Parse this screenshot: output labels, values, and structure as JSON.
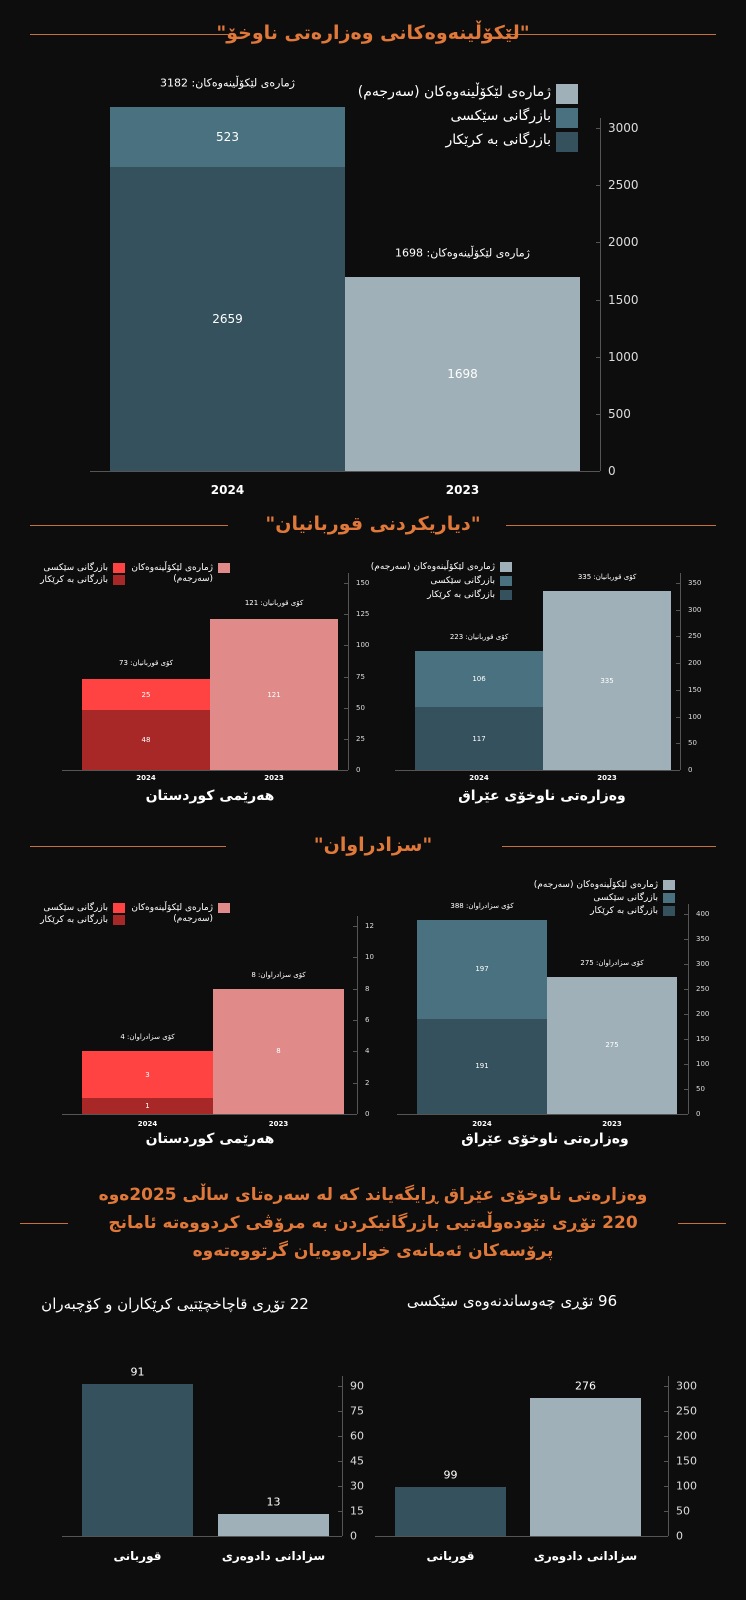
{
  "sections": {
    "investigations_title": "\"لێکۆڵینەوەکانی وەزارەتی ناوخۆ\"",
    "victims_title": "\"دیاریکردنی قوربانیان\"",
    "sentenced_title": "\"سزادراوان\""
  },
  "narrative": [
    "وەزارەتی ناوخۆی عێراق ڕایگەیاند کە لە سەرەتای ساڵی 2025ەوە",
    "220 تۆڕی نێودەوڵەتیی بازرگانیکردن بە مرۆڤی کردووەتە ئامانج",
    "پرۆسەکان ئەمانەی خوارەوەیان گرتووەتەوە"
  ],
  "colors": {
    "accent": "#e0783a",
    "teal_total": "#a0b0b8",
    "teal_sexual": "#4a7180",
    "teal_labor": "#34515d",
    "red_total": "#e08a8a",
    "red_sexual": "#ff4343",
    "red_labor": "#a82828"
  },
  "chart_data": [
    {
      "id": "investigations",
      "type": "bar",
      "stacked": true,
      "title": "",
      "xlabel": "",
      "ylabel": "",
      "ylim": [
        0,
        3000
      ],
      "ticks": [
        0,
        500,
        1000,
        1500,
        2000,
        2500,
        3000
      ],
      "palette": "teal",
      "legend_placement": "top-right",
      "series": {
        "total": "ژمارەی لێکۆڵینەوەکان (سەرجەم)",
        "sexual": "بازرگانی سێکسی",
        "labor": "بازرگانی بە کرێکار"
      },
      "categories": [
        "2024",
        "2023"
      ],
      "bars": [
        {
          "category": "2024",
          "total_label": "ژمارەی لێکۆڵینەوەکان: 3182",
          "segments": [
            {
              "series": "labor",
              "value": 2659
            },
            {
              "series": "sexual",
              "value": 523
            }
          ]
        },
        {
          "category": "2023",
          "total_label": "ژمارەی لێکۆڵینەوەکان: 1698",
          "segments": [
            {
              "series": "total",
              "value": 1698
            }
          ]
        }
      ]
    },
    {
      "id": "krg-victims",
      "type": "bar",
      "stacked": true,
      "title": "هەرێمی کوردستان",
      "ylim": [
        0,
        150
      ],
      "ticks": [
        0,
        25,
        50,
        75,
        100,
        125,
        150
      ],
      "palette": "red",
      "legend_placement": "top-left",
      "series": {
        "total": "ژمارەی لێکۆڵینەوەکان (سەرجەم)",
        "sexual": "بازرگانی سێکسی",
        "labor": "بازرگانی بە کرێکار"
      },
      "categories": [
        "2024",
        "2023"
      ],
      "bars": [
        {
          "category": "2024",
          "total_label": "کۆی قوربانیان: 73",
          "segments": [
            {
              "series": "labor",
              "value": 48
            },
            {
              "series": "sexual",
              "value": 25
            }
          ]
        },
        {
          "category": "2023",
          "total_label": "کۆی قوربانیان: 121",
          "segments": [
            {
              "series": "total",
              "value": 121
            }
          ]
        }
      ]
    },
    {
      "id": "iraq-victims",
      "type": "bar",
      "stacked": true,
      "title": "وەزارەتی ناوخۆی عێراق",
      "ylim": [
        0,
        350
      ],
      "ticks": [
        0,
        50,
        100,
        150,
        200,
        250,
        300,
        350
      ],
      "palette": "teal",
      "legend_placement": "top-left",
      "series": {
        "total": "ژمارەی لێکۆڵینەوەکان (سەرجەم)",
        "sexual": "بازرگانی سێکسی",
        "labor": "بازرگانی بە کرێکار"
      },
      "categories": [
        "2024",
        "2023"
      ],
      "bars": [
        {
          "category": "2024",
          "total_label": "کۆی قوربانیان: 223",
          "segments": [
            {
              "series": "labor",
              "value": 117
            },
            {
              "series": "sexual",
              "value": 106
            }
          ]
        },
        {
          "category": "2023",
          "total_label": "کۆی قوربانیان: 335",
          "segments": [
            {
              "series": "total",
              "value": 335
            }
          ]
        }
      ]
    },
    {
      "id": "krg-sentenced",
      "type": "bar",
      "stacked": true,
      "title": "هەرێمی کوردستان",
      "ylim": [
        0,
        12
      ],
      "ticks": [
        0,
        2,
        4,
        6,
        8,
        10,
        12
      ],
      "palette": "red",
      "legend_placement": "top-left",
      "series": {
        "total": "ژمارەی لێکۆڵینەوەکان (سەرجەم)",
        "sexual": "بازرگانی سێکسی",
        "labor": "بازرگانی بە کرێکار"
      },
      "categories": [
        "2024",
        "2023"
      ],
      "bars": [
        {
          "category": "2024",
          "total_label": "کۆی سزادراوان: 4",
          "segments": [
            {
              "series": "labor",
              "value": 1
            },
            {
              "series": "sexual",
              "value": 3
            }
          ]
        },
        {
          "category": "2023",
          "total_label": "کۆی سزادراوان: 8",
          "segments": [
            {
              "series": "total",
              "value": 8
            }
          ]
        }
      ]
    },
    {
      "id": "iraq-sentenced",
      "type": "bar",
      "stacked": true,
      "title": "وەزارەتی ناوخۆی عێراق",
      "ylim": [
        0,
        400
      ],
      "ticks": [
        0,
        50,
        100,
        150,
        200,
        250,
        300,
        350,
        400
      ],
      "palette": "teal",
      "legend_placement": "top-right",
      "series": {
        "total": "ژمارەی لێکۆڵینەوەکان (سەرجەم)",
        "sexual": "بازرگانی سێکسی",
        "labor": "بازرگانی بە کرێکار"
      },
      "categories": [
        "2024",
        "2023"
      ],
      "bars": [
        {
          "category": "2024",
          "total_label": "کۆی سزادراوان: 388",
          "segments": [
            {
              "series": "labor",
              "value": 191
            },
            {
              "series": "sexual",
              "value": 197
            }
          ]
        },
        {
          "category": "2023",
          "total_label": "کۆی سزادراوان: 275",
          "segments": [
            {
              "series": "total",
              "value": 275
            }
          ]
        }
      ]
    },
    {
      "id": "labor-networks",
      "type": "bar",
      "stacked": false,
      "title": "22 تۆڕی قاچاخچێتیی کرێکاران و کۆچبەران",
      "ylim": [
        0,
        90
      ],
      "ticks": [
        0,
        15,
        30,
        45,
        60,
        75,
        90
      ],
      "palette": "teal",
      "categories": [
        "قوربانی",
        "سزادانی دادوەری"
      ],
      "bars": [
        {
          "category": "قوربانی",
          "segments": [
            {
              "series": "labor",
              "value": 91
            }
          ]
        },
        {
          "category": "سزادانی دادوەری",
          "segments": [
            {
              "series": "total",
              "value": 13
            }
          ]
        }
      ]
    },
    {
      "id": "sexual-networks",
      "type": "bar",
      "stacked": false,
      "title": "96 تۆڕی چەوساندنەوەی سێکسی",
      "ylim": [
        0,
        300
      ],
      "ticks": [
        0,
        50,
        100,
        150,
        200,
        250,
        300
      ],
      "palette": "teal",
      "categories": [
        "قوربانی",
        "سزادانی دادوەری"
      ],
      "bars": [
        {
          "category": "قوربانی",
          "segments": [
            {
              "series": "labor",
              "value": 99
            }
          ]
        },
        {
          "category": "سزادانی دادوەری",
          "segments": [
            {
              "series": "total",
              "value": 276
            }
          ]
        }
      ]
    }
  ]
}
